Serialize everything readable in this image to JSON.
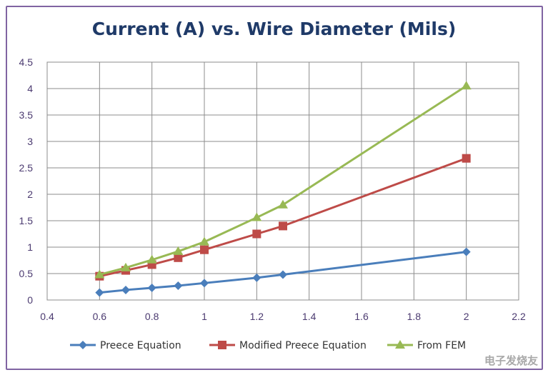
{
  "chart_data": {
    "type": "line",
    "title": "Current (A) vs. Wire Diameter (Mils)",
    "xlabel": "",
    "ylabel": "",
    "xlim": [
      0.4,
      2.2
    ],
    "ylim": [
      0,
      4.5
    ],
    "xticks": [
      "0.4",
      "0.6",
      "0.8",
      "1",
      "1.2",
      "1.4",
      "1.6",
      "1.8",
      "2",
      "2.2"
    ],
    "yticks": [
      "0",
      "0.5",
      "1",
      "1.5",
      "2",
      "2.5",
      "3",
      "3.5",
      "4",
      "4.5"
    ],
    "grid": true,
    "legend_position": "bottom",
    "series": [
      {
        "name": "Preece Equation",
        "color": "#4a7ebb",
        "marker": "diamond",
        "points": [
          {
            "x": 0.6,
            "y": 0.14
          },
          {
            "x": 0.7,
            "y": 0.19
          },
          {
            "x": 0.8,
            "y": 0.23
          },
          {
            "x": 0.9,
            "y": 0.27
          },
          {
            "x": 1.0,
            "y": 0.32
          },
          {
            "x": 1.2,
            "y": 0.42
          },
          {
            "x": 1.3,
            "y": 0.48
          },
          {
            "x": 2.0,
            "y": 0.91
          }
        ]
      },
      {
        "name": "Modified Preece Equation",
        "color": "#be4b48",
        "marker": "square",
        "points": [
          {
            "x": 0.6,
            "y": 0.45
          },
          {
            "x": 0.7,
            "y": 0.56
          },
          {
            "x": 0.8,
            "y": 0.67
          },
          {
            "x": 0.9,
            "y": 0.8
          },
          {
            "x": 1.0,
            "y": 0.95
          },
          {
            "x": 1.2,
            "y": 1.25
          },
          {
            "x": 1.3,
            "y": 1.4
          },
          {
            "x": 2.0,
            "y": 2.68
          }
        ]
      },
      {
        "name": "From FEM",
        "color": "#98b954",
        "marker": "triangle",
        "points": [
          {
            "x": 0.6,
            "y": 0.48
          },
          {
            "x": 0.7,
            "y": 0.61
          },
          {
            "x": 0.8,
            "y": 0.76
          },
          {
            "x": 0.9,
            "y": 0.92
          },
          {
            "x": 1.0,
            "y": 1.1
          },
          {
            "x": 1.2,
            "y": 1.56
          },
          {
            "x": 1.3,
            "y": 1.8
          },
          {
            "x": 2.0,
            "y": 4.05
          }
        ]
      }
    ]
  },
  "watermark": "电子发烧友"
}
